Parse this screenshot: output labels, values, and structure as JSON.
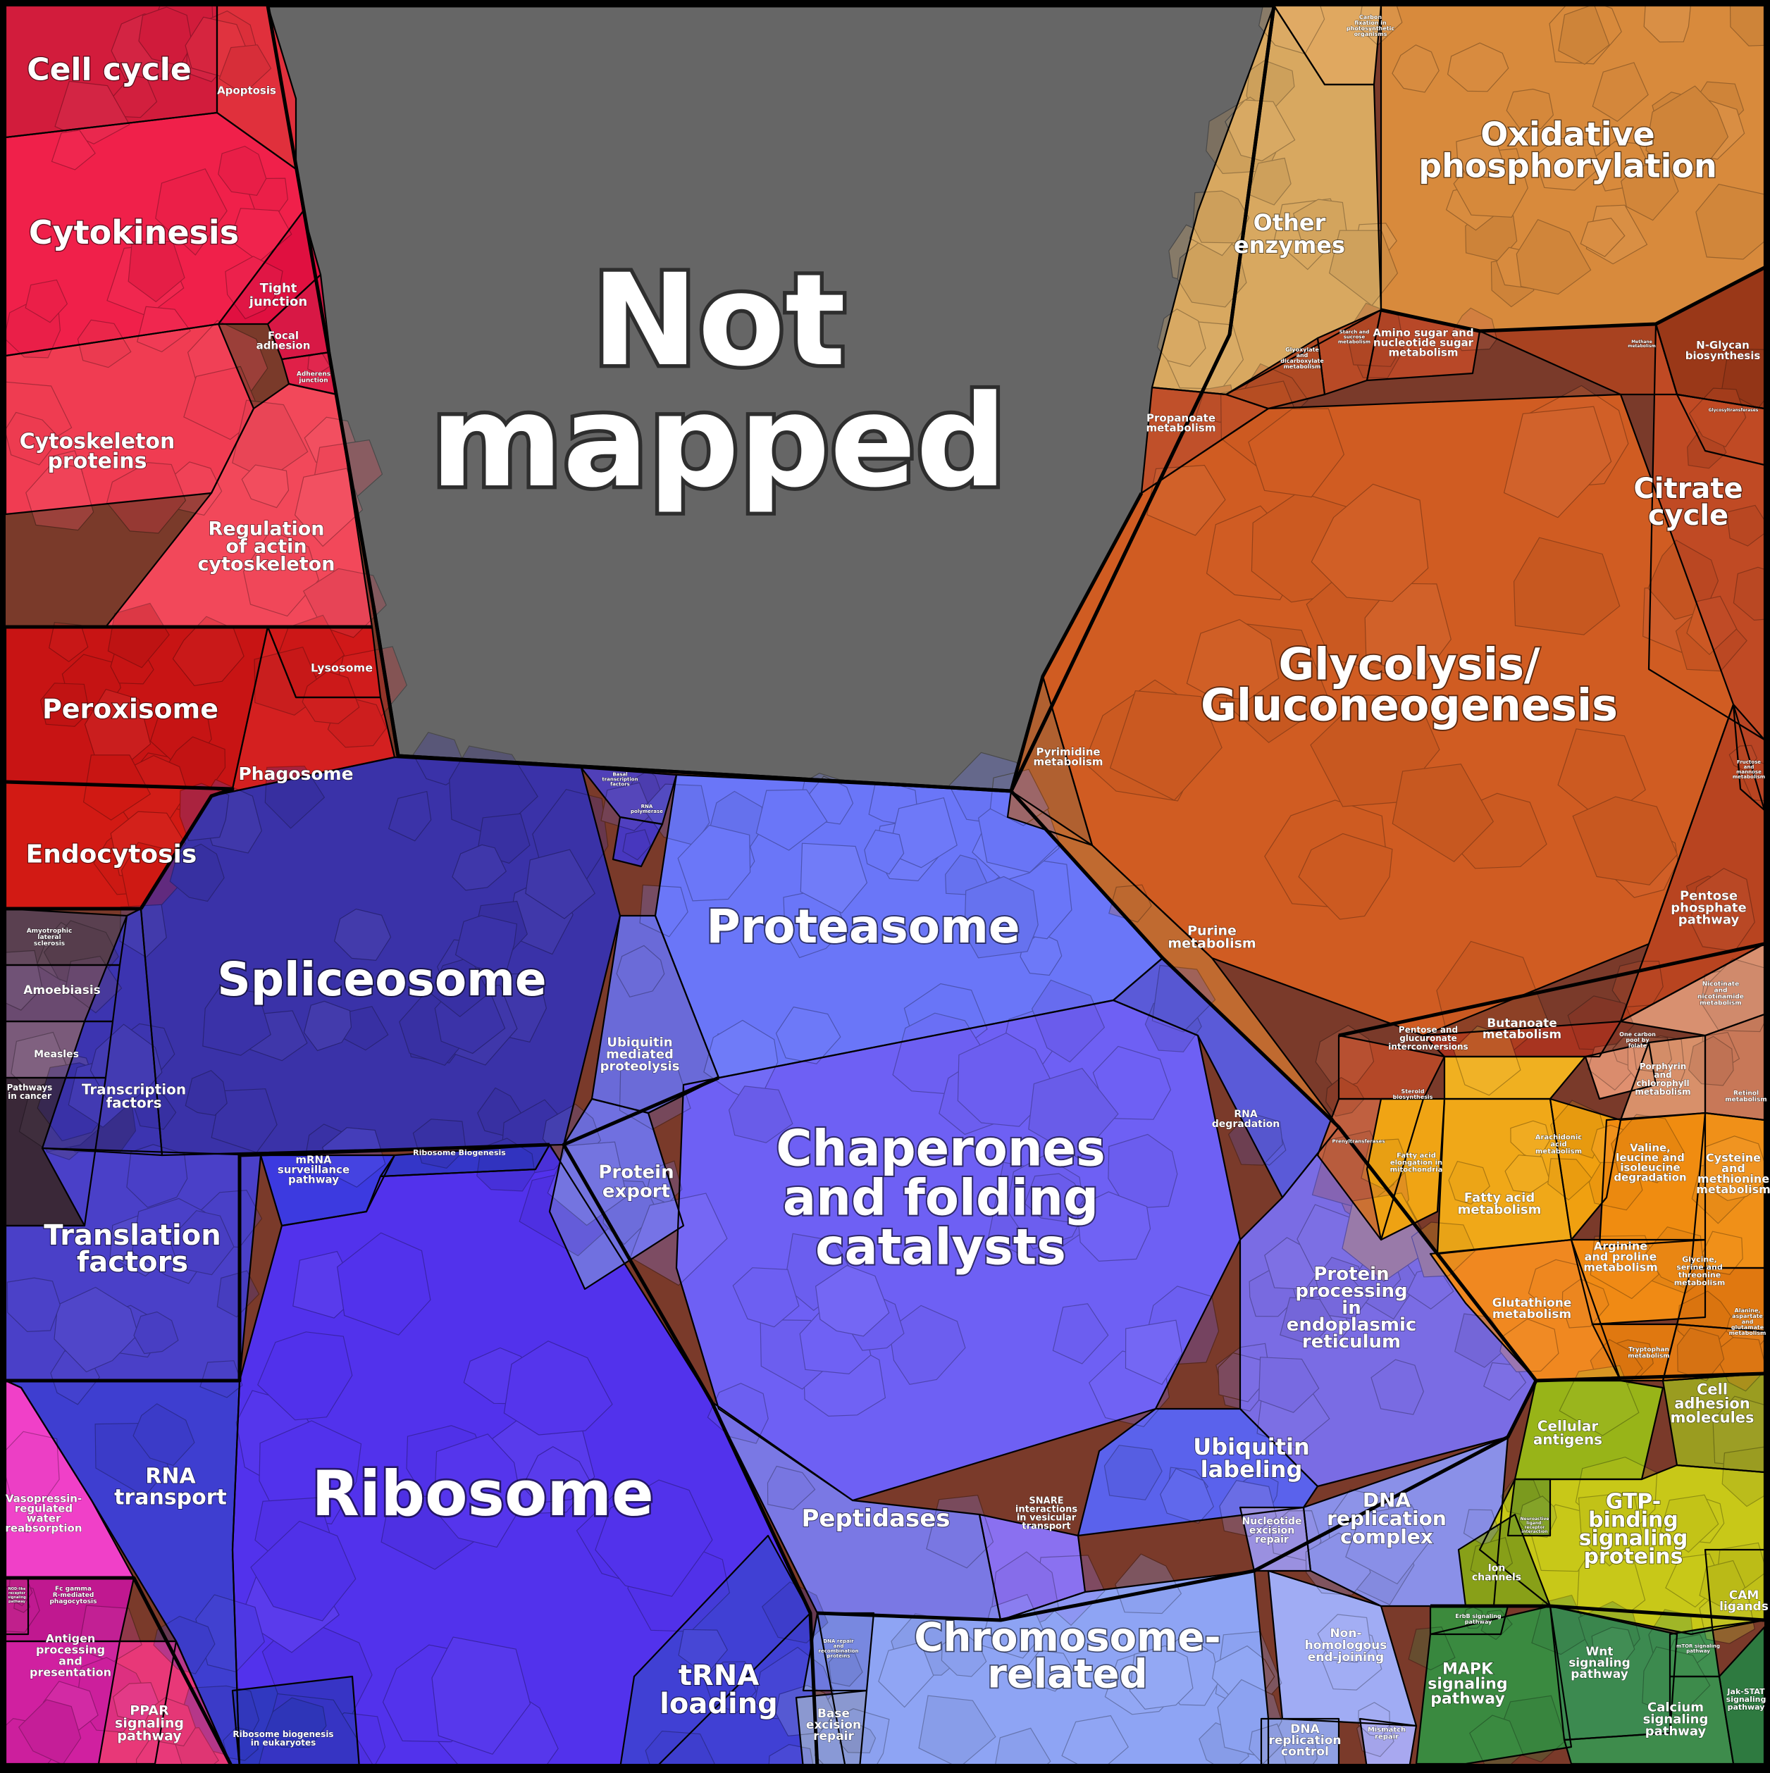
{
  "diagram": {
    "type": "voronoi-treemap",
    "regions": {
      "not_mapped": {
        "label": "Not mapped",
        "color": "#666666"
      },
      "cell_cycle": {
        "label": "Cell cycle",
        "color": "#d21c3c"
      },
      "apoptosis": {
        "label": "Apoptosis",
        "color": "#e0303c"
      },
      "cytokinesis": {
        "label": "Cytokinesis",
        "color": "#f0204a"
      },
      "tight_junction": {
        "label": "Tight junction",
        "color": "#e01040"
      },
      "focal_adhesion": {
        "label": "Focal adhesion",
        "color": "#d81845"
      },
      "adherens_junction": {
        "label": "Adherens junction",
        "color": "#e02048"
      },
      "cytoskeleton_proteins": {
        "label": "Cytoskeleton proteins",
        "color": "#f03c52"
      },
      "regulation_actin": {
        "label": "Regulation of actin cytoskeleton",
        "color": "#f2485a"
      },
      "peroxisome": {
        "label": "Peroxisome",
        "color": "#c81414"
      },
      "lysosome": {
        "label": "Lysosome",
        "color": "#d01818"
      },
      "phagosome": {
        "label": "Phagosome",
        "color": "#d42020"
      },
      "endocytosis": {
        "label": "Endocytosis",
        "color": "#d21a14"
      },
      "amyotrophic": {
        "label": "Amyotrophic lateral sclerosis",
        "color": "#5a4050"
      },
      "amoebiasis": {
        "label": "Amoebiasis",
        "color": "#6a4a70"
      },
      "measles": {
        "label": "Measles",
        "color": "#7a5a7a"
      },
      "pathways_in_cancer": {
        "label": "Pathways in cancer",
        "color": "#3a2838"
      },
      "spliceosome": {
        "label": "Spliceosome",
        "color": "#3a32a8"
      },
      "basal_tf": {
        "label": "Basal transcription factors",
        "color": "#5040b8"
      },
      "rna_polymerase": {
        "label": "RNA polymerase",
        "color": "#4838c0"
      },
      "transcription_factors": {
        "label": "Transcription factors",
        "color": "#3c34b0"
      },
      "translation_factors": {
        "label": "Translation factors",
        "color": "#4a40c8"
      },
      "mrna_surveillance": {
        "label": "mRNA surveillance pathway",
        "color": "#3c3ae0"
      },
      "ribosome_biogenesis": {
        "label": "Ribosome Biogenesis",
        "color": "#3436c8"
      },
      "ribosome": {
        "label": "Ribosome",
        "color": "#5232ec"
      },
      "rna_transport": {
        "label": "RNA transport",
        "color": "#3e3ed0"
      },
      "trna_loading": {
        "label": "tRNA loading",
        "color": "#4040d4"
      },
      "ribosome_biogenesis_euk": {
        "label": "Ribosome biogenesis in eukaryotes",
        "color": "#3038c0"
      },
      "proteasome": {
        "label": "Proteasome",
        "color": "#6a76f8"
      },
      "ubiquitin_proteolysis": {
        "label": "Ubiquitin mediated proteolysis",
        "color": "#6a6ad8"
      },
      "protein_export": {
        "label": "Protein export",
        "color": "#7070e0"
      },
      "chaperones": {
        "label": "Chaperones and folding catalysts",
        "color": "#6e60f4"
      },
      "rna_degradation": {
        "label": "RNA degradation",
        "color": "#5a5ad8"
      },
      "protein_processing_er": {
        "label": "Protein processing in endoplasmic reticulum",
        "color": "#7a6ce4"
      },
      "ubiquitin_labeling": {
        "label": "Ubiquitin labeling",
        "color": "#5a62ec"
      },
      "peptidases": {
        "label": "Peptidases",
        "color": "#7a78e4"
      },
      "snare": {
        "label": "SNARE interactions in vesicular transport",
        "color": "#8a70f0"
      },
      "nucleotide_excision": {
        "label": "Nucleotide excision repair",
        "color": "#9a90e0"
      },
      "dna_replication_complex": {
        "label": "DNA replication complex",
        "color": "#8a90e8"
      },
      "chromosome_related": {
        "label": "Chromosome-related",
        "color": "#8ea4f4"
      },
      "non_homologous": {
        "label": "Non-homologous end-joining",
        "color": "#a0acf4"
      },
      "dna_replication_control": {
        "label": "DNA replication control",
        "color": "#90a0e4"
      },
      "base_excision": {
        "label": "Base excision repair",
        "color": "#8a98d0"
      },
      "mismatch_repair": {
        "label": "Mismatch repair",
        "color": "#a8a8f0"
      },
      "dna_repair": {
        "label": "DNA repair and recombination proteins",
        "color": "#7888e0"
      },
      "carbon_fixation": {
        "label": "Carbon fixation in photosynthetic organisms",
        "color": "#e0a860"
      },
      "other_enzymes": {
        "label": "Other enzymes",
        "color": "#d8a860"
      },
      "oxidative_phosphorylation": {
        "label": "Oxidative phosphorylation",
        "color": "#d88a3c"
      },
      "n_glycan": {
        "label": "N-Glycan biosynthesis",
        "color": "#9a3818"
      },
      "glycosyltransferases": {
        "label": "Glycosyltransferases",
        "color": "#a44020"
      },
      "amino_sugar": {
        "label": "Amino sugar and nucleotide sugar metabolism",
        "color": "#b84828"
      },
      "glyoxylate": {
        "label": "Glyoxylate and dicarboxylate metabolism",
        "color": "#b04a24"
      },
      "starch": {
        "label": "Starch and sucrose metabolism",
        "color": "#b84a26"
      },
      "methane": {
        "label": "Methane metabolism",
        "color": "#a84220"
      },
      "propanoate": {
        "label": "Propanoate metabolism",
        "color": "#c0502a"
      },
      "citrate_cycle": {
        "label": "Citrate cycle",
        "color": "#c04a24"
      },
      "glycolysis": {
        "label": "Glycolysis/ Gluconeogenesis",
        "color": "#d05c22"
      },
      "pyrimidine": {
        "label": "Pyrimidine metabolism",
        "color": "#b06030"
      },
      "purine": {
        "label": "Purine metabolism",
        "color": "#c06a30"
      },
      "fructose": {
        "label": "Fructose and mannose metabolism",
        "color": "#b84424"
      },
      "pentose_phosphate": {
        "label": "Pentose phosphate pathway",
        "color": "#b84420"
      },
      "butanoate": {
        "label": "Butanoate metabolism",
        "color": "#a83420"
      },
      "pentose_glucuronate": {
        "label": "Pentose and glucuronate interconversions",
        "color": "#b44828"
      },
      "nicotinate": {
        "label": "Nicotinate and nicotinamide metabolism",
        "color": "#d89070"
      },
      "one_carbon": {
        "label": "One carbon pool by folate",
        "color": "#e09070"
      },
      "porphyrin": {
        "label": "Porphyrin and chlorophyll metabolism",
        "color": "#d8906a"
      },
      "retinol": {
        "label": "Retinol metabolism",
        "color": "#c87858"
      },
      "prenyltransferases": {
        "label": "Prenyltransferases",
        "color": "#c06040"
      },
      "fatty_acid_elongation": {
        "label": "Fatty acid elongation in mitochondria",
        "color": "#f0a414"
      },
      "fatty_acid": {
        "label": "Fatty acid metabolism",
        "color": "#f0a818"
      },
      "steroid": {
        "label": "Steroid biosynthesis",
        "color": "#f0b020"
      },
      "arachidonic": {
        "label": "Arachidonic acid metabolism",
        "color": "#f0a010"
      },
      "valine": {
        "label": "Valine, leucine and isoleucine degradation",
        "color": "#f08c10"
      },
      "cysteine": {
        "label": "Cysteine and methionine metabolism",
        "color": "#f09018"
      },
      "arginine": {
        "label": "Arginine and proline metabolism",
        "color": "#f08a14"
      },
      "glycine": {
        "label": "Glycine, serine and threonine metabolism",
        "color": "#e07810"
      },
      "glutathione": {
        "label": "Glutathione metabolism",
        "color": "#f08820"
      },
      "tryptophan": {
        "label": "Tryptophan metabolism",
        "color": "#e07810"
      },
      "alanine": {
        "label": "Alanine, aspartate and glutamate metabolism",
        "color": "#e07814"
      },
      "cellular_antigens": {
        "label": "Cellular antigens",
        "color": "#98b418"
      },
      "cell_adhesion": {
        "label": "Cell adhesion molecules",
        "color": "#9a9c20"
      },
      "gtp_binding": {
        "label": "GTP-binding signaling proteins",
        "color": "#c8c818"
      },
      "ion_channels": {
        "label": "Ion channels",
        "color": "#88a018"
      },
      "cam_ligands": {
        "label": "CAM ligands",
        "color": "#c0c018"
      },
      "neuroactive": {
        "label": "Neuroactive ligand-receptor interaction",
        "color": "#80a020"
      },
      "erbb": {
        "label": "ErbB signaling pathway",
        "color": "#3c8a3c"
      },
      "mapk": {
        "label": "MAPK signaling pathway",
        "color": "#3a8a40"
      },
      "wnt": {
        "label": "Wnt signaling pathway",
        "color": "#3c8a50"
      },
      "mtor": {
        "label": "mTOR signaling pathway",
        "color": "#409050"
      },
      "calcium": {
        "label": "Calcium signaling pathway",
        "color": "#3e8c4c"
      },
      "jak_stat": {
        "label": "Jak-STAT signaling pathway",
        "color": "#2e7a40"
      },
      "vasopressin": {
        "label": "Vasopressin-regulated water reabsorption",
        "color": "#f040c8"
      },
      "fc_gamma": {
        "label": "Fc gamma R-mediated phagocytosis",
        "color": "#c01890"
      },
      "antigen_processing": {
        "label": "Antigen processing and presentation",
        "color": "#d020a0"
      },
      "nod_like": {
        "label": "NOD-like receptor signaling pathway",
        "color": "#c0208a"
      },
      "ppar": {
        "label": "PPAR signaling pathway",
        "color": "#e83878"
      }
    }
  }
}
